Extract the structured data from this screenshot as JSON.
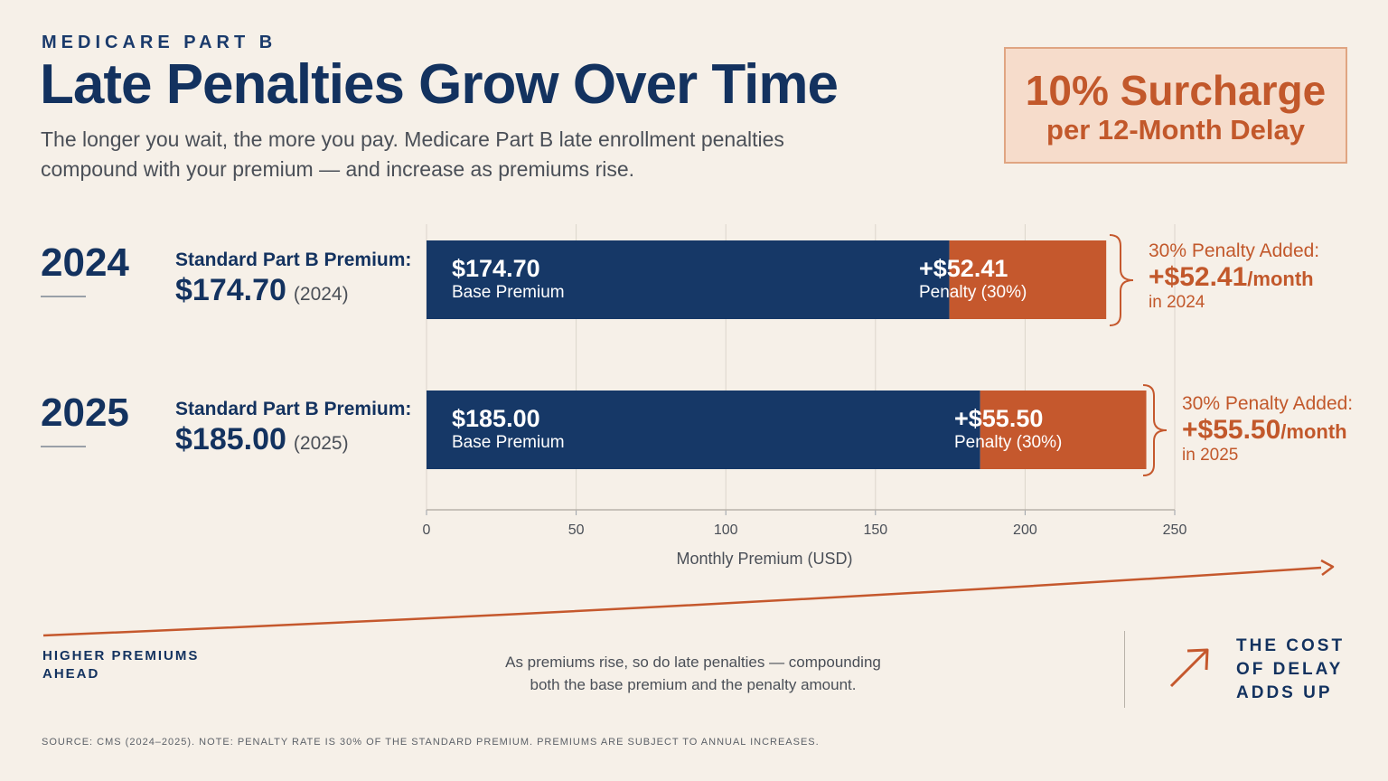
{
  "header": {
    "eyebrow": "MEDICARE PART B",
    "title": "Late Penalties Grow Over Time",
    "subtitle_line1": "The longer you wait, the more you pay. Medicare Part B late enrollment penalties",
    "subtitle_line2": "compound with your premium — and increase as premiums rise."
  },
  "callout": {
    "main": "10% Surcharge",
    "sub": "per 12-Month Delay"
  },
  "rows": [
    {
      "year": "2024",
      "premium_label": "Standard Part B Premium:",
      "premium_value": "$174.70",
      "premium_paren": "(2024)",
      "base_value_label": "$174.70",
      "base_sub_label": "Base Premium",
      "penalty_value_label": "+$52.41",
      "penalty_sub_label": "Penalty (30%)",
      "annot_title": "30% Penalty Added:",
      "annot_amount": "+$52.41",
      "annot_unit": "/month",
      "annot_year": "in 2024"
    },
    {
      "year": "2025",
      "premium_label": "Standard Part B Premium:",
      "premium_value": "$185.00",
      "premium_paren": "(2025)",
      "base_value_label": "$185.00",
      "base_sub_label": "Base Premium",
      "penalty_value_label": "+$55.50",
      "penalty_sub_label": "Penalty (30%)",
      "annot_title": "30% Penalty Added:",
      "annot_amount": "+$55.50",
      "annot_unit": "/month",
      "annot_year": "in 2025"
    }
  ],
  "chart_data": {
    "type": "bar",
    "orientation": "horizontal",
    "stacked": true,
    "categories": [
      "2024",
      "2025"
    ],
    "series": [
      {
        "name": "Base Premium",
        "values": [
          174.7,
          185.0
        ],
        "color": "#163867"
      },
      {
        "name": "Penalty (30%)",
        "values": [
          52.41,
          55.5
        ],
        "color": "#c5582d"
      }
    ],
    "xlabel": "Monthly Premium (USD)",
    "xlim": [
      0,
      250
    ],
    "xticks": [
      0,
      50,
      100,
      150,
      200,
      250
    ],
    "grid": true
  },
  "footer": {
    "left_line1": "HIGHER PREMIUMS",
    "left_line2": "AHEAD",
    "mid_line1": "As premiums rise, so do late penalties — compounding",
    "mid_line2": "both the base premium and the penalty amount.",
    "right_line1": "THE COST",
    "right_line2": "OF DELAY",
    "right_line3": "ADDS UP",
    "source": "SOURCE: CMS (2024–2025).   NOTE: PENALTY RATE IS 30% OF THE STANDARD PREMIUM. PREMIUMS ARE SUBJECT TO ANNUAL INCREASES."
  },
  "colors": {
    "navy": "#163867",
    "orange": "#c5582d",
    "background": "#f6f0e8"
  }
}
